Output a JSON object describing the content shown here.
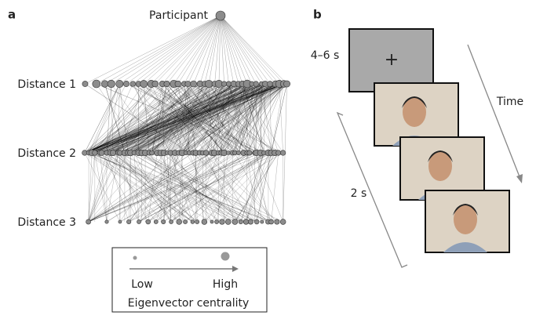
{
  "panel_a": {
    "label": "a",
    "root": "Participant",
    "levels": [
      "Distance 1",
      "Distance 2",
      "Distance 3"
    ],
    "legend": {
      "low": "Low",
      "high": "High",
      "title": "Eigenvector centrality"
    }
  },
  "panel_b": {
    "label": "b",
    "fixation_duration": "4–6 s",
    "fixation_symbol": "+",
    "time": "Time",
    "face_duration": "2 s"
  }
}
